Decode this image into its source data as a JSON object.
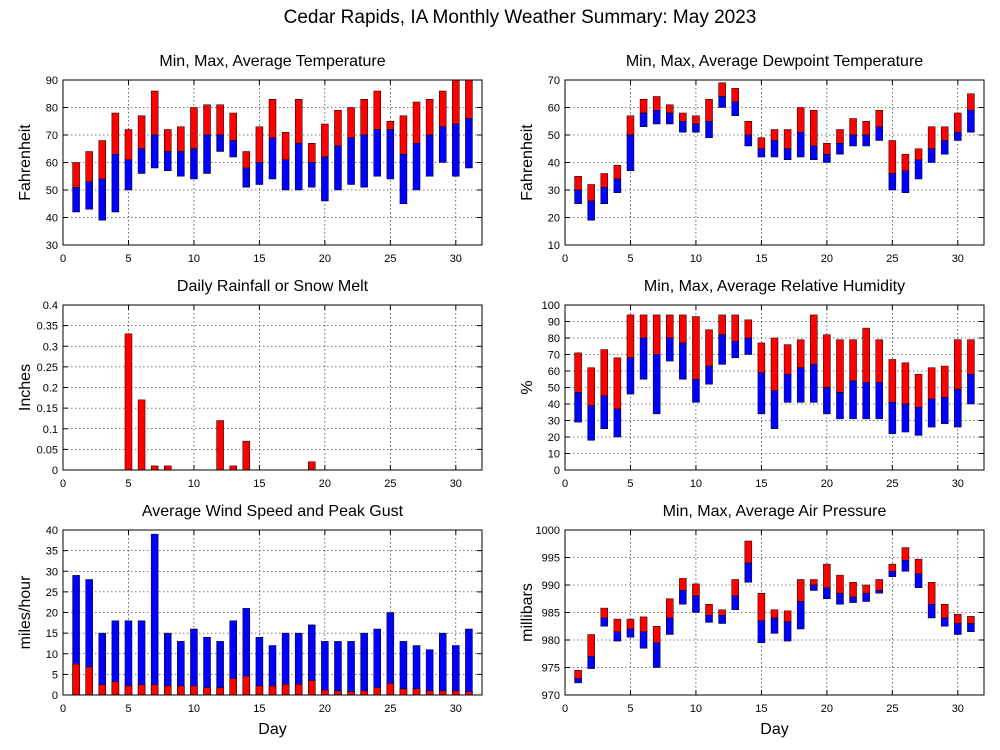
{
  "page": {
    "title": "Cedar Rapids, IA Monthly Weather Summary: May 2023"
  },
  "colors": {
    "upper": "#ff0000",
    "lower": "#0000ff",
    "gust": "#0000ff",
    "avg": "#ff0000"
  },
  "chart_data": [
    {
      "id": "temperature",
      "type": "bar",
      "title": "Min, Max, Average Temperature",
      "xlabel": "",
      "ylabel": "Fahrenheit",
      "xlim": [
        0,
        32
      ],
      "xticks": [
        0,
        5,
        10,
        15,
        20,
        25,
        30
      ],
      "ylim": [
        30,
        90
      ],
      "yticks": [
        30,
        40,
        50,
        60,
        70,
        80,
        90
      ],
      "grid": true,
      "series": [
        {
          "name": "Min",
          "values": [
            42,
            43,
            39,
            42,
            50,
            56,
            58,
            57,
            55,
            54,
            56,
            64,
            62,
            51,
            52,
            54,
            50,
            50,
            51,
            46,
            50,
            52,
            51,
            55,
            54,
            45,
            50,
            55,
            60,
            55,
            58
          ]
        },
        {
          "name": "Average",
          "values": [
            51,
            53,
            54,
            63,
            61,
            65,
            70,
            64,
            64,
            65,
            70,
            70,
            68,
            58,
            60,
            69,
            61,
            67,
            60,
            62,
            66,
            69,
            70,
            72,
            72,
            63,
            67,
            70,
            73,
            74,
            76
          ]
        },
        {
          "name": "Max",
          "values": [
            60,
            64,
            68,
            78,
            72,
            77,
            86,
            72,
            73,
            80,
            81,
            81,
            78,
            64,
            73,
            83,
            71,
            83,
            67,
            74,
            79,
            80,
            83,
            86,
            75,
            77,
            82,
            83,
            86,
            90,
            90
          ]
        }
      ]
    },
    {
      "id": "dewpoint",
      "type": "bar",
      "title": "Min, Max, Average Dewpoint Temperature",
      "xlabel": "",
      "ylabel": "Fahrenheit",
      "xlim": [
        0,
        32
      ],
      "xticks": [
        0,
        5,
        10,
        15,
        20,
        25,
        30
      ],
      "ylim": [
        10,
        70
      ],
      "yticks": [
        10,
        20,
        30,
        40,
        50,
        60,
        70
      ],
      "grid": true,
      "series": [
        {
          "name": "Min",
          "values": [
            25,
            19,
            25,
            29,
            37,
            53,
            54,
            54,
            51,
            51,
            49,
            60,
            57,
            46,
            42,
            42,
            41,
            42,
            41,
            40,
            43,
            46,
            46,
            48,
            30,
            29,
            34,
            40,
            43,
            48,
            51
          ]
        },
        {
          "name": "Average",
          "values": [
            30,
            26,
            31,
            34,
            50,
            58,
            59,
            58,
            55,
            54,
            55,
            64,
            62,
            50,
            45,
            48,
            45,
            51,
            46,
            43,
            47,
            50,
            50,
            53,
            36,
            37,
            41,
            45,
            48,
            51,
            59
          ]
        },
        {
          "name": "Max",
          "values": [
            35,
            32,
            36,
            39,
            57,
            63,
            64,
            61,
            58,
            57,
            63,
            69,
            67,
            55,
            49,
            52,
            52,
            60,
            59,
            47,
            52,
            56,
            55,
            59,
            48,
            43,
            45,
            53,
            53,
            58,
            65
          ]
        }
      ]
    },
    {
      "id": "rainfall",
      "type": "bar",
      "title": "Daily Rainfall or Snow Melt",
      "xlabel": "",
      "ylabel": "Inches",
      "xlim": [
        0,
        32
      ],
      "xticks": [
        0,
        5,
        10,
        15,
        20,
        25,
        30
      ],
      "ylim": [
        0,
        0.4
      ],
      "yticks": [
        0,
        0.05,
        0.1,
        0.15,
        0.2,
        0.25,
        0.3,
        0.35,
        0.4
      ],
      "ytick_labels": [
        "0",
        "0.05",
        "0.1",
        "0.15",
        "0.2",
        "0.25",
        "0.3",
        "0.35",
        "0.4"
      ],
      "grid": true,
      "values": [
        0,
        0,
        0,
        0,
        0.33,
        0.17,
        0.01,
        0.01,
        0,
        0,
        0,
        0.12,
        0.01,
        0.07,
        0,
        0,
        0,
        0,
        0.02,
        0,
        0,
        0,
        0,
        0,
        0,
        0,
        0,
        0,
        0,
        0,
        0
      ]
    },
    {
      "id": "humidity",
      "type": "bar",
      "title": "Min, Max, Average Relative Humidity",
      "xlabel": "",
      "ylabel": "%",
      "xlim": [
        0,
        32
      ],
      "xticks": [
        0,
        5,
        10,
        15,
        20,
        25,
        30
      ],
      "ylim": [
        0,
        100
      ],
      "yticks": [
        0,
        10,
        20,
        30,
        40,
        50,
        60,
        70,
        80,
        90,
        100
      ],
      "grid": true,
      "series": [
        {
          "name": "Min",
          "values": [
            29,
            18,
            25,
            20,
            46,
            55,
            34,
            66,
            55,
            41,
            52,
            64,
            68,
            70,
            34,
            25,
            41,
            41,
            41,
            34,
            31,
            31,
            31,
            31,
            22,
            23,
            21,
            26,
            28,
            26,
            40
          ]
        },
        {
          "name": "Average",
          "values": [
            47,
            39,
            45,
            37,
            68,
            80,
            70,
            80,
            77,
            55,
            63,
            82,
            78,
            80,
            59,
            48,
            58,
            62,
            64,
            50,
            47,
            54,
            53,
            53,
            41,
            40,
            38,
            43,
            44,
            49,
            58
          ]
        },
        {
          "name": "Max",
          "values": [
            71,
            62,
            73,
            68,
            94,
            94,
            94,
            94,
            94,
            93,
            85,
            94,
            94,
            91,
            77,
            80,
            76,
            79,
            94,
            82,
            79,
            79,
            86,
            79,
            67,
            65,
            58,
            62,
            63,
            79,
            79
          ]
        }
      ]
    },
    {
      "id": "wind",
      "type": "bar",
      "title": "Average Wind Speed and Peak Gust",
      "xlabel": "Day",
      "ylabel": "miles/hour",
      "xlim": [
        0,
        32
      ],
      "xticks": [
        0,
        5,
        10,
        15,
        20,
        25,
        30
      ],
      "ylim": [
        0,
        40
      ],
      "yticks": [
        0,
        5,
        10,
        15,
        20,
        25,
        30,
        35,
        40
      ],
      "grid": true,
      "series": [
        {
          "name": "Peak Gust",
          "values": [
            29,
            28,
            15,
            18,
            18,
            18,
            39,
            15,
            13,
            16,
            14,
            13,
            18,
            21,
            14,
            12,
            15,
            15,
            17,
            13,
            13,
            13,
            15,
            16,
            20,
            13,
            12,
            11,
            15,
            12,
            16
          ]
        },
        {
          "name": "Average Speed",
          "values": [
            7.5,
            6.8,
            2.5,
            3.2,
            2.2,
            2.5,
            2.5,
            2.2,
            2.2,
            2.2,
            1.8,
            1.8,
            4,
            4.6,
            2.2,
            2.2,
            2.6,
            2.6,
            3.5,
            1.2,
            1,
            0.8,
            1,
            1.8,
            2.8,
            1.5,
            1.5,
            1,
            1,
            1,
            0.8
          ]
        }
      ]
    },
    {
      "id": "pressure",
      "type": "bar",
      "title": "Min, Max, Average Air Pressure",
      "xlabel": "Day",
      "ylabel": "millibars",
      "xlim": [
        0,
        32
      ],
      "xticks": [
        0,
        5,
        10,
        15,
        20,
        25,
        30
      ],
      "ylim": [
        970,
        1000
      ],
      "yticks": [
        970,
        975,
        980,
        985,
        990,
        995,
        1000
      ],
      "grid": true,
      "series": [
        {
          "name": "Min",
          "values": [
            972.2,
            974.8,
            982.5,
            979.8,
            980.5,
            978.5,
            975,
            981,
            986.5,
            985,
            983.2,
            983,
            985.5,
            990.5,
            979.5,
            981.2,
            979.8,
            982,
            989,
            987.5,
            986.5,
            986.8,
            987,
            988.5,
            991.5,
            992.5,
            989.5,
            984,
            982.5,
            981,
            981.5
          ]
        },
        {
          "name": "Average",
          "values": [
            973,
            977,
            984,
            981.5,
            982,
            981.5,
            979.5,
            984,
            989,
            988,
            984.5,
            984.5,
            988,
            994,
            983.5,
            984,
            983.3,
            987,
            990,
            989.5,
            988.5,
            987.8,
            988.5,
            989,
            992.5,
            994.5,
            992,
            986.5,
            984,
            983,
            983
          ]
        },
        {
          "name": "Max",
          "values": [
            974.5,
            981,
            985.8,
            983.8,
            983.8,
            984.2,
            982.5,
            987.5,
            991.2,
            990.2,
            986.5,
            985.5,
            991,
            998,
            988.5,
            985.5,
            985.3,
            991,
            991,
            993.8,
            991.8,
            990.5,
            990,
            991,
            993.8,
            996.8,
            994.7,
            990.5,
            986.5,
            984.7,
            984.3
          ]
        }
      ]
    }
  ]
}
